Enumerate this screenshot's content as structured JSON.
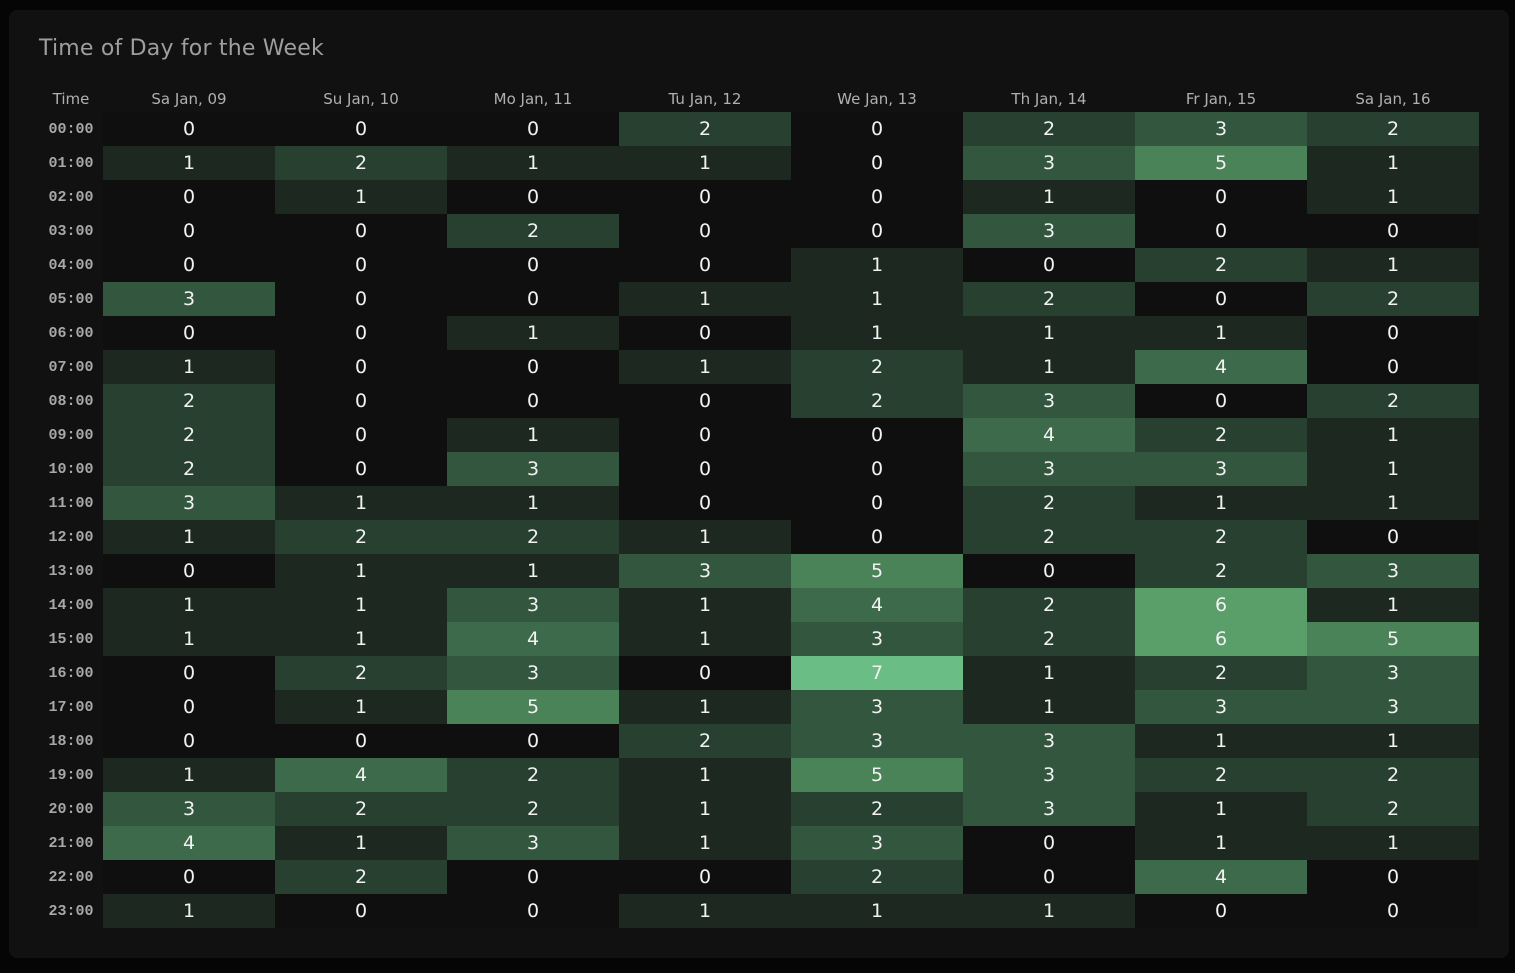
{
  "chart_data": {
    "type": "heatmap",
    "title": "Time of Day for the Week",
    "row_header": "Time",
    "columns": [
      "Sa Jan, 09",
      "Su Jan, 10",
      "Mo Jan, 11",
      "Tu Jan, 12",
      "We Jan, 13",
      "Th Jan, 14",
      "Fr Jan, 15",
      "Sa Jan, 16"
    ],
    "rows": [
      "00:00",
      "01:00",
      "02:00",
      "03:00",
      "04:00",
      "05:00",
      "06:00",
      "07:00",
      "08:00",
      "09:00",
      "10:00",
      "11:00",
      "12:00",
      "13:00",
      "14:00",
      "15:00",
      "16:00",
      "17:00",
      "18:00",
      "19:00",
      "20:00",
      "21:00",
      "22:00",
      "23:00"
    ],
    "values": [
      [
        0,
        0,
        0,
        2,
        0,
        2,
        3,
        2
      ],
      [
        1,
        2,
        1,
        1,
        0,
        3,
        5,
        1
      ],
      [
        0,
        1,
        0,
        0,
        0,
        1,
        0,
        1
      ],
      [
        0,
        0,
        2,
        0,
        0,
        3,
        0,
        0
      ],
      [
        0,
        0,
        0,
        0,
        1,
        0,
        2,
        1
      ],
      [
        3,
        0,
        0,
        1,
        1,
        2,
        0,
        2
      ],
      [
        0,
        0,
        1,
        0,
        1,
        1,
        1,
        0
      ],
      [
        1,
        0,
        0,
        1,
        2,
        1,
        4,
        0
      ],
      [
        2,
        0,
        0,
        0,
        2,
        3,
        0,
        2
      ],
      [
        2,
        0,
        1,
        0,
        0,
        4,
        2,
        1
      ],
      [
        2,
        0,
        3,
        0,
        0,
        3,
        3,
        1
      ],
      [
        3,
        1,
        1,
        0,
        0,
        2,
        1,
        1
      ],
      [
        1,
        2,
        2,
        1,
        0,
        2,
        2,
        0
      ],
      [
        0,
        1,
        1,
        3,
        5,
        0,
        2,
        3
      ],
      [
        1,
        1,
        3,
        1,
        4,
        2,
        6,
        1
      ],
      [
        1,
        1,
        4,
        1,
        3,
        2,
        6,
        5
      ],
      [
        0,
        2,
        3,
        0,
        7,
        1,
        2,
        3
      ],
      [
        0,
        1,
        5,
        1,
        3,
        1,
        3,
        3
      ],
      [
        0,
        0,
        0,
        2,
        3,
        3,
        1,
        1
      ],
      [
        1,
        4,
        2,
        1,
        5,
        3,
        2,
        2
      ],
      [
        3,
        2,
        2,
        1,
        2,
        3,
        1,
        2
      ],
      [
        4,
        1,
        3,
        1,
        3,
        0,
        1,
        1
      ],
      [
        0,
        2,
        0,
        0,
        2,
        0,
        4,
        0
      ],
      [
        1,
        0,
        0,
        1,
        1,
        1,
        0,
        0
      ]
    ],
    "color_scale": [
      "#0f0f0f",
      "#1c2820",
      "#27402f",
      "#33563e",
      "#3d6a4b",
      "#4a8358",
      "#5a9e6a",
      "#6abd84"
    ]
  }
}
